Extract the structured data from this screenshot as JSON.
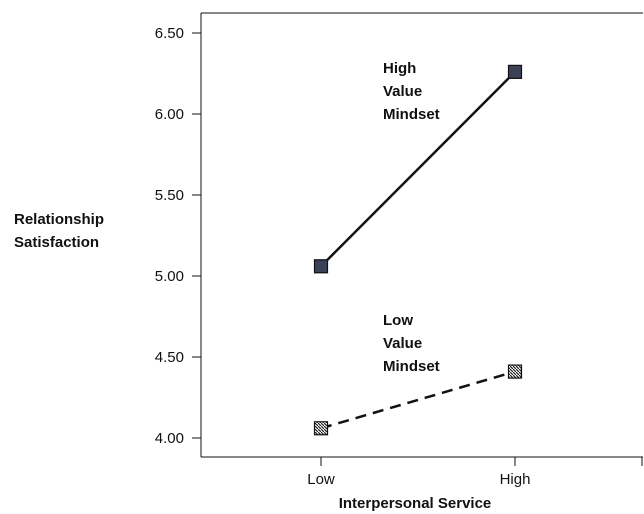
{
  "chart_data": {
    "type": "line",
    "categories": [
      "Low",
      "High"
    ],
    "xlabel": "Interpersonal Service",
    "ylabel": [
      "Relationship",
      "Satisfaction"
    ],
    "ylim": [
      4.0,
      6.5
    ],
    "yticks": [
      "4.00",
      "4.50",
      "5.00",
      "5.50",
      "6.00",
      "6.50"
    ],
    "grid": false,
    "series": [
      {
        "name": [
          "High",
          "Value",
          "Mindset"
        ],
        "values": [
          5.06,
          6.26
        ],
        "line_style": "solid",
        "marker": "filled-square",
        "color": "#3b4257"
      },
      {
        "name": [
          "Low",
          "Value",
          "Mindset"
        ],
        "values": [
          4.06,
          4.41
        ],
        "line_style": "dashed",
        "marker": "hatched-square",
        "color": "#111111"
      }
    ]
  }
}
